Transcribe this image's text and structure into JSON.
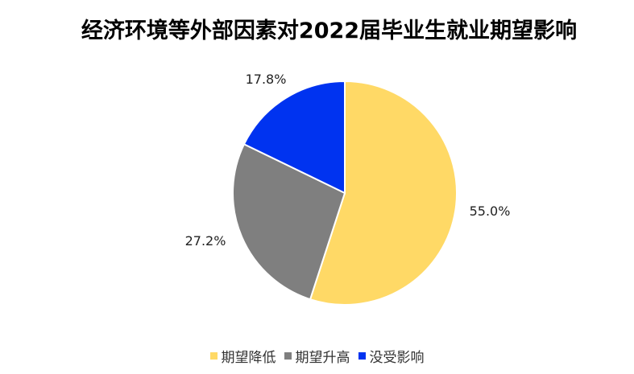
{
  "chart_data": {
    "type": "pie",
    "title": "经济环境等外部因素对2022届毕业生就业期望影响",
    "categories": [
      "期望降低",
      "期望升高",
      "没受影响"
    ],
    "values": [
      55.0,
      27.2,
      17.8
    ],
    "data_labels": [
      "55.0%",
      "27.2%",
      "17.8%"
    ],
    "colors": [
      "#FFD966",
      "#7F7F7F",
      "#0033F0"
    ],
    "legend": "bottom"
  }
}
